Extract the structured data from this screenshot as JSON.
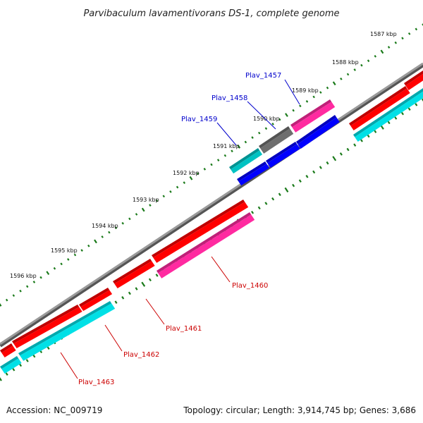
{
  "title": "Parvibaculum lavamentivorans DS-1, complete genome",
  "footer": {
    "accession": "Accession: NC_009719",
    "summary": "Topology: circular; Length: 3,914,745 bp; Genes: 3,686"
  },
  "colors": {
    "backbone": "#888888",
    "tick": "#1a7a1a",
    "forward_label": "#0000cc",
    "reverse_label": "#cc0000",
    "red": "#ff0000",
    "magenta": "#ff2aa0",
    "cyan": "#00e0e6",
    "teal": "#00c2c2",
    "blue": "#0000ff",
    "gray": "#6e6e6e"
  },
  "scale_labels": [
    "1587 kbp",
    "1588 kbp",
    "1589 kbp",
    "1590 kbp",
    "1591 kbp",
    "1592 kbp",
    "1593 kbp",
    "1594 kbp",
    "1595 kbp",
    "1596 kbp"
  ],
  "gene_labels": {
    "forward": [
      "Plav_1457",
      "Plav_1458",
      "Plav_1459"
    ],
    "reverse": [
      "Plav_1460",
      "Plav_1461",
      "Plav_1462",
      "Plav_1463"
    ]
  }
}
